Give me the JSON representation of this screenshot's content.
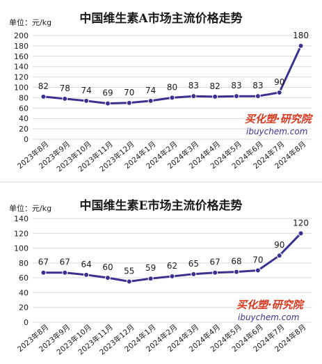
{
  "colors": {
    "line": "#3a3290",
    "point_fill": "#3a3290",
    "point_stroke": "#ffffff",
    "grid": "#d9d9d9",
    "axis_text": "#1a1a1a",
    "watermark_red": "#d9381e",
    "watermark_blue": "#3a3290"
  },
  "watermark": {
    "brand": "买化塑·研究院",
    "url": "ibuychem.com"
  },
  "chart_data": [
    {
      "type": "line",
      "title": "中国维生素A市场主流价格走势",
      "unit_label": "单位：元/kg",
      "categories": [
        "2023年8月",
        "2023年9月",
        "2023年10月",
        "2023年11月",
        "2023年12月",
        "2024年1月",
        "2024年2月",
        "2024年3月",
        "2024年4月",
        "2024年5月",
        "2024年6月",
        "2024年7月",
        "2024年8月"
      ],
      "values": [
        82,
        78,
        74,
        69,
        70,
        74,
        80,
        83,
        82,
        83,
        83,
        90,
        180
      ],
      "ylim": [
        0,
        200
      ],
      "yticks": [
        0,
        20,
        40,
        60,
        80,
        100,
        120,
        140,
        160,
        180,
        200
      ],
      "grid": true,
      "data_labels": true
    },
    {
      "type": "line",
      "title": "中国维生素E市场主流价格走势",
      "unit_label": "单位：元/kg",
      "categories": [
        "2023年8月",
        "2023年9月",
        "2023年10月",
        "2023年11月",
        "2023年12月",
        "2024年1月",
        "2024年2月",
        "2024年3月",
        "2024年4月",
        "2024年5月",
        "2024年6月",
        "2024年7月",
        "2024年8月"
      ],
      "values": [
        67,
        67,
        64,
        60,
        55,
        59,
        62,
        65,
        67,
        68,
        70,
        90,
        120
      ],
      "ylim": [
        0,
        140
      ],
      "yticks": [
        0,
        20,
        40,
        60,
        80,
        100,
        120,
        140
      ],
      "grid": true,
      "data_labels": true
    }
  ]
}
